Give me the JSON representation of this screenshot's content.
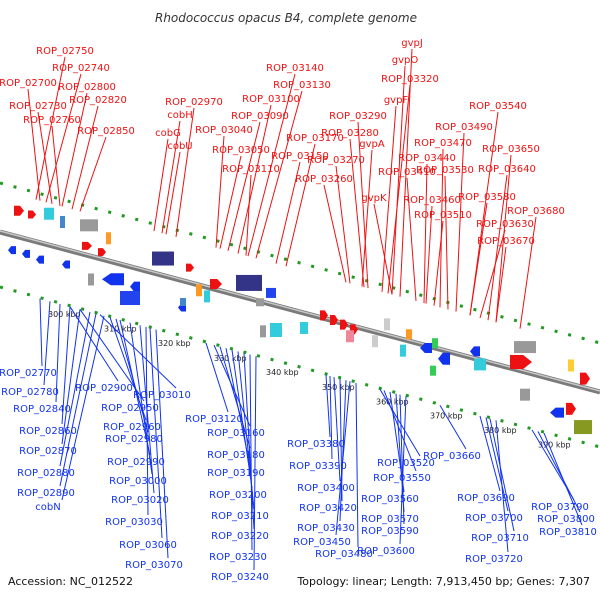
{
  "title": "Rhodococcus opacus B4, complete genome",
  "accession": "Accession: NC_012522",
  "summary": "Topology: linear; Length: 7,913,450 bp; Genes: 7,307",
  "colors": {
    "plus_strand": "#ee1111",
    "minus_strand": "#1133ee",
    "backbone": "#8c8c8c",
    "dots": "#229922"
  },
  "scale_ticks": [
    "300 kbp",
    "310 kbp",
    "320 kbp",
    "330 kbp",
    "340 kbp",
    "350 kbp",
    "360 kbp",
    "370 kbp",
    "380 kbp",
    "390 kbp"
  ],
  "top_labels": [
    "ROP_02750",
    "ROP_02740",
    "ROP_02700",
    "ROP_02800",
    "ROP_02820",
    "ROP_02730",
    "ROP_02760",
    "ROP_02850",
    "ROP_02970",
    "cobH",
    "cobG",
    "cobU",
    "ROP_03140",
    "ROP_03130",
    "ROP_03100",
    "ROP_03090",
    "ROP_03040",
    "ROP_03050",
    "ROP_03170",
    "ROP_03150",
    "ROP_03110",
    "gvpJ",
    "gvpO",
    "ROP_03320",
    "gvpF",
    "ROP_03290",
    "ROP_03280",
    "gvpA",
    "ROP_03270",
    "ROP_03260",
    "ROP_03540",
    "ROP_03490",
    "ROP_03470",
    "ROP_03440",
    "ROP_03410",
    "gvpK",
    "ROP_03460",
    "ROP_03530",
    "ROP_03510",
    "ROP_03580",
    "ROP_03650",
    "ROP_03640",
    "ROP_03630",
    "ROP_03680",
    "ROP_03670"
  ],
  "bottom_labels": [
    "ROP_02770",
    "ROP_02780",
    "ROP_02900",
    "ROP_02840",
    "ROP_02950",
    "ROP_03010",
    "ROP_02860",
    "ROP_02960",
    "ROP_02870",
    "ROP_02980",
    "ROP_02880",
    "ROP_02990",
    "ROP_03000",
    "ROP_02890",
    "cobN",
    "ROP_03020",
    "ROP_03030",
    "ROP_03060",
    "ROP_03070",
    "ROP_03120",
    "ROP_03160",
    "ROP_03180",
    "ROP_03190",
    "ROP_03200",
    "ROP_03210",
    "ROP_03220",
    "ROP_03230",
    "ROP_03240",
    "ROP_03380",
    "ROP_03390",
    "ROP_03400",
    "ROP_03420",
    "ROP_03430",
    "ROP_03450",
    "ROP_03480",
    "ROP_03520",
    "ROP_03550",
    "ROP_03560",
    "ROP_03570",
    "ROP_03590",
    "ROP_03600",
    "ROP_03660",
    "ROP_03690",
    "ROP_03700",
    "ROP_03710",
    "ROP_03720",
    "ROP_03790",
    "ROP_03800",
    "ROP_03810"
  ]
}
